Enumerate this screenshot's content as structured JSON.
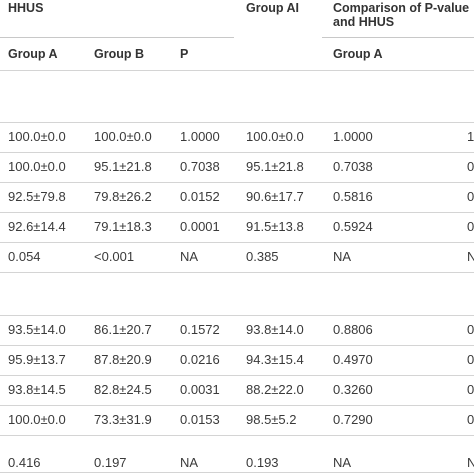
{
  "header": {
    "hhus": "HHUS",
    "group_ai": "Group AI",
    "comparison_line1": "Comparison of P-value",
    "comparison_line2": "and HHUS"
  },
  "subheader": {
    "group_a": "Group A",
    "group_b": "Group B",
    "p": "P",
    "group_a_right": "Group A"
  },
  "section1": {
    "rows": [
      [
        "100.0±0.0",
        "100.0±0.0",
        "1.0000",
        "100.0±0.0",
        "1.0000",
        "1"
      ],
      [
        "100.0±0.0",
        "95.1±21.8",
        "0.7038",
        "95.1±21.8",
        "0.7038",
        "0"
      ],
      [
        "92.5±79.8",
        "79.8±26.2",
        "0.0152",
        "90.6±17.7",
        "0.5816",
        "0"
      ],
      [
        "92.6±14.4",
        "79.1±18.3",
        "0.0001",
        "91.5±13.8",
        "0.5924",
        "0"
      ],
      [
        "0.054",
        "<0.001",
        "NA",
        "0.385",
        "NA",
        "N"
      ]
    ]
  },
  "section2": {
    "rows": [
      [
        "93.5±14.0",
        "86.1±20.7",
        "0.1572",
        "93.8±14.0",
        "0.8806",
        "0"
      ],
      [
        "95.9±13.7",
        "87.8±20.9",
        "0.0216",
        "94.3±15.4",
        "0.4970",
        "0"
      ],
      [
        "93.8±14.5",
        "82.8±24.5",
        "0.0031",
        "88.2±22.0",
        "0.3260",
        "0"
      ],
      [
        "100.0±0.0",
        "73.3±31.9",
        "0.0153",
        "98.5±5.2",
        "0.7290",
        "0"
      ],
      [
        "0.416",
        "0.197",
        "NA",
        "0.193",
        "NA",
        "N"
      ]
    ]
  }
}
